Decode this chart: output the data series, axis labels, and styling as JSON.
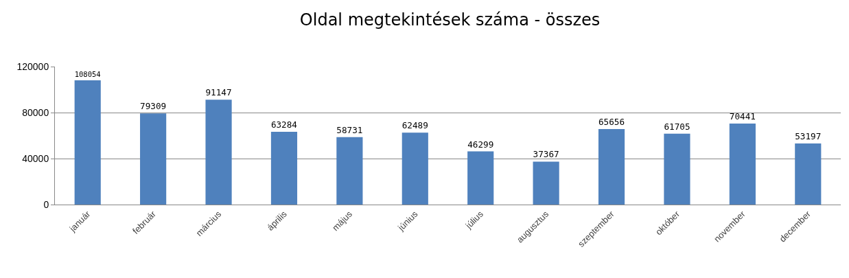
{
  "chart_data": {
    "type": "bar",
    "title": "Oldal megtekintések száma - összes",
    "categories": [
      "január",
      "február",
      "március",
      "április",
      "május",
      "június",
      "július",
      "augusztus",
      "szeptember",
      "október",
      "november",
      "december"
    ],
    "values": [
      108054,
      79309,
      91147,
      63284,
      58731,
      62489,
      46299,
      37367,
      65656,
      61705,
      70441,
      53197
    ],
    "color": "#4f81bd",
    "ylim": [
      0,
      120000
    ],
    "yticks": [
      0,
      40000,
      80000,
      120000
    ],
    "grid": "y",
    "data_labels": true
  }
}
